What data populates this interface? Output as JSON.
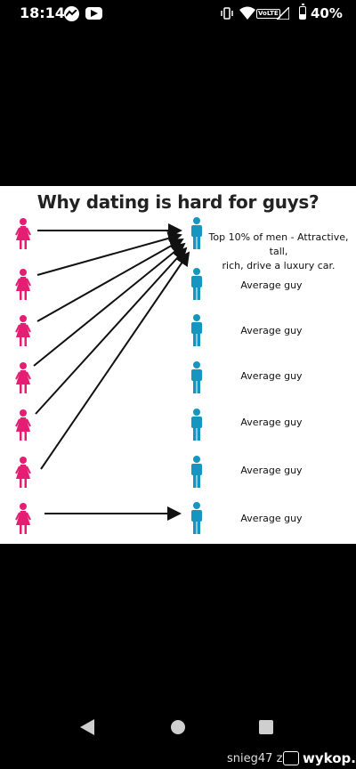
{
  "status_bar": {
    "time": "18:14",
    "battery": "40%",
    "battery_level": 0.4,
    "network_badge": "VoLTE",
    "icons": [
      "messenger-icon",
      "youtube-icon",
      "vibrate-icon",
      "wifi-icon",
      "signal-icon",
      "battery-icon"
    ]
  },
  "infographic": {
    "title": "Why dating is hard for guys?",
    "labels": [
      "Top 10% of men - Attractive, tall,\nrich, drive a luxury car.",
      "Average guy",
      "Average guy",
      "Average guy",
      "Average guy",
      "Average guy",
      "Average guy"
    ],
    "women_count": 7,
    "men_count": 7,
    "female_color": "#e61e73",
    "male_color": "#1596be"
  },
  "nav_bar": {
    "icons": [
      "back-icon",
      "home-icon",
      "recent-apps-icon"
    ]
  },
  "footer": {
    "username": "snieg47",
    "connector": "z",
    "site": "wykop.pl"
  }
}
